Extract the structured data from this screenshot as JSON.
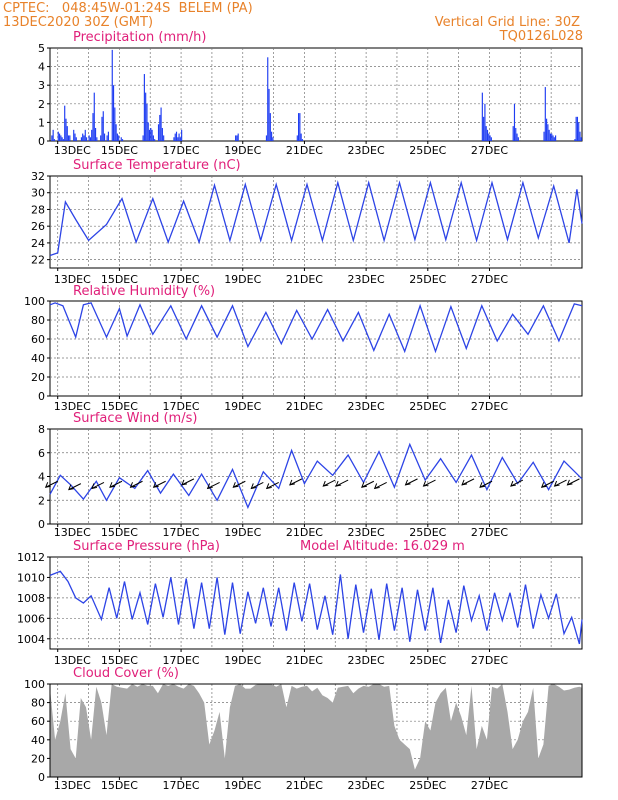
{
  "header": {
    "line1": "CPTEC:   048:45W-01:24S  BELEM (PA)",
    "line2": "13DEC2020 30Z (GMT)",
    "grid_note": "Vertical Grid Line: 30Z",
    "code": "TQ0126L028",
    "model_altitude": "Model Altitude: 16.029 m"
  },
  "colors": {
    "header": "#e8822a",
    "title": "#e0207a",
    "line": "#2d44e6",
    "bar": "#1f3df2",
    "cloud": "#a8a8a8",
    "arrow": "#000000"
  },
  "chart_data": [
    {
      "id": "precip",
      "type": "bar",
      "title": "Precipitation (mm/h)",
      "xlabel_ticks": [
        "13DEC",
        "15DEC",
        "17DEC",
        "19DEC",
        "21DEC",
        "23DEC",
        "25DEC",
        "27DEC"
      ],
      "ylim": [
        0,
        5
      ],
      "yticks": [
        0,
        1,
        2,
        3,
        4,
        5
      ],
      "grid": true,
      "x_hours": [
        1,
        2,
        3,
        6,
        7,
        8,
        9,
        10,
        11,
        12,
        13,
        14,
        15,
        18,
        19,
        20,
        24,
        25,
        26,
        27,
        28,
        30,
        31,
        32,
        33,
        34,
        35,
        36,
        39,
        40,
        41,
        42,
        44,
        45,
        48,
        49,
        50,
        51,
        52,
        53,
        55,
        56,
        72,
        73,
        74,
        75,
        76,
        77,
        78,
        79,
        80,
        81,
        84,
        85,
        86,
        87,
        88,
        96,
        97,
        98,
        99,
        100,
        101,
        102,
        144,
        145,
        146,
        168,
        169,
        170,
        171,
        172,
        173,
        192,
        193,
        194,
        195,
        196,
        336,
        337,
        338,
        339,
        340,
        341,
        342,
        343,
        360,
        361,
        362,
        363,
        364,
        384,
        385,
        386,
        387,
        388,
        389,
        390,
        391,
        392,
        393,
        408,
        409,
        410,
        411,
        412,
        413
      ],
      "values": [
        0.3,
        0.6,
        0.1,
        0.5,
        0.4,
        0.3,
        0.2,
        0.1,
        1.9,
        1.2,
        0.8,
        0.3,
        0.3,
        0.6,
        0.4,
        0.2,
        0.2,
        0.4,
        0.3,
        0.6,
        0.2,
        0.3,
        0.2,
        0.6,
        1.5,
        2.6,
        0.7,
        0.2,
        0.3,
        1.3,
        1.6,
        0.4,
        0.3,
        0.5,
        4.9,
        3.0,
        1.8,
        0.9,
        0.4,
        0.3,
        0.2,
        0.1,
        0.3,
        3.6,
        2.6,
        2.0,
        1.0,
        0.6,
        0.7,
        0.6,
        0.3,
        0.1,
        0.9,
        1.4,
        1.8,
        0.7,
        0.3,
        0.2,
        0.4,
        0.5,
        0.2,
        0.4,
        0.2,
        0.6,
        0.3,
        0.3,
        0.4,
        0.3,
        4.5,
        2.8,
        1.5,
        0.5,
        0.2,
        0.3,
        1.5,
        1.5,
        0.4,
        0.1,
        2.6,
        1.3,
        2.0,
        0.8,
        0.6,
        0.4,
        0.3,
        0.2,
        0.8,
        2.0,
        0.7,
        0.4,
        0.2,
        0.5,
        2.9,
        1.2,
        0.9,
        0.6,
        0.4,
        0.4,
        0.3,
        0.2,
        0.3,
        0.1,
        1.3,
        1.3,
        1.0,
        0.5,
        0.2
      ]
    },
    {
      "id": "temp",
      "type": "line",
      "title": "Surface Temperature (nC)",
      "xlabel_ticks": [
        "13DEC",
        "15DEC",
        "17DEC",
        "19DEC",
        "21DEC",
        "23DEC",
        "25DEC",
        "27DEC"
      ],
      "ylim": [
        21,
        32
      ],
      "yticks": [
        22,
        24,
        26,
        28,
        30,
        32
      ],
      "grid": true,
      "x_hours": [
        0,
        6,
        12,
        20,
        30,
        44,
        56,
        67,
        80,
        92,
        104,
        116,
        128,
        140,
        152,
        164,
        176,
        188,
        200,
        212,
        224,
        236,
        248,
        260,
        272,
        284,
        296,
        308,
        320,
        332,
        344,
        356,
        368,
        380,
        392,
        404,
        410,
        414
      ],
      "values": [
        22.5,
        22.8,
        28.9,
        26.8,
        24.3,
        26.2,
        29.3,
        24.1,
        29.3,
        24.1,
        29.0,
        24.1,
        30.9,
        24.3,
        31.0,
        24.3,
        31.0,
        24.3,
        31.0,
        24.3,
        31.2,
        24.3,
        31.2,
        24.3,
        31.2,
        24.4,
        31.2,
        24.4,
        31.2,
        24.3,
        31.2,
        24.4,
        31.2,
        24.6,
        30.8,
        24.0,
        30.4,
        26.3
      ]
    },
    {
      "id": "rh",
      "type": "line",
      "title": "Relative Humidity (%)",
      "xlabel_ticks": [
        "13DEC",
        "15DEC",
        "17DEC",
        "19DEC",
        "21DEC",
        "23DEC",
        "25DEC",
        "27DEC"
      ],
      "ylim": [
        0,
        100
      ],
      "yticks": [
        0,
        20,
        40,
        60,
        80,
        100
      ],
      "grid": true,
      "x_hours": [
        0,
        4,
        10,
        20,
        26,
        32,
        44,
        54,
        60,
        70,
        80,
        94,
        106,
        118,
        130,
        142,
        154,
        168,
        180,
        192,
        204,
        216,
        228,
        240,
        252,
        264,
        276,
        288,
        300,
        312,
        324,
        336,
        348,
        360,
        372,
        384,
        396,
        408,
        414
      ],
      "values": [
        96,
        98,
        95,
        62,
        96,
        98,
        62,
        92,
        63,
        96,
        65,
        95,
        60,
        95,
        62,
        95,
        52,
        88,
        55,
        90,
        60,
        91,
        58,
        88,
        48,
        86,
        47,
        95,
        47,
        94,
        50,
        95,
        58,
        86,
        65,
        95,
        58,
        97,
        95
      ]
    },
    {
      "id": "wind",
      "type": "line",
      "title": "Surface Wind (m/s)",
      "xlabel_ticks": [
        "13DEC",
        "15DEC",
        "17DEC",
        "19DEC",
        "21DEC",
        "23DEC",
        "25DEC",
        "27DEC"
      ],
      "ylim": [
        0,
        8
      ],
      "yticks": [
        0,
        2,
        4,
        6,
        8
      ],
      "grid": true,
      "x_hours": [
        0,
        8,
        16,
        26,
        36,
        44,
        54,
        66,
        76,
        86,
        96,
        108,
        118,
        130,
        142,
        154,
        166,
        178,
        188,
        198,
        208,
        220,
        232,
        244,
        256,
        268,
        280,
        292,
        304,
        316,
        328,
        340,
        352,
        364,
        376,
        388,
        400,
        414
      ],
      "values": [
        2.5,
        4.1,
        3.3,
        2.1,
        3.6,
        2.0,
        3.9,
        3.0,
        4.5,
        2.6,
        4.2,
        2.4,
        4.2,
        2.0,
        4.6,
        1.4,
        4.4,
        3.0,
        6.2,
        3.4,
        5.3,
        4.1,
        5.8,
        3.5,
        6.1,
        3.1,
        6.7,
        3.7,
        5.5,
        3.5,
        5.8,
        2.9,
        5.6,
        3.4,
        5.2,
        2.9,
        5.3,
        3.8
      ],
      "arrows_x_hours": [
        6,
        24,
        42,
        56,
        72,
        90,
        112,
        132,
        152,
        166,
        178,
        196,
        222,
        232,
        252,
        262,
        286,
        300,
        330,
        344,
        368,
        392,
        402,
        412
      ],
      "arrows_y": [
        3.6,
        3.4,
        3.5,
        3.6,
        3.6,
        3.6,
        3.8,
        3.5,
        3.6,
        3.5,
        3.5,
        3.8,
        3.7,
        3.7,
        3.6,
        3.5,
        3.8,
        3.7,
        3.8,
        3.6,
        3.7,
        3.6,
        3.7,
        3.8
      ]
    },
    {
      "id": "pres",
      "type": "line",
      "title": "Surface Pressure (hPa)",
      "xlabel_ticks": [
        "13DEC",
        "15DEC",
        "17DEC",
        "19DEC",
        "21DEC",
        "23DEC",
        "25DEC",
        "27DEC"
      ],
      "ylim": [
        1003,
        1012
      ],
      "yticks": [
        1004,
        1006,
        1008,
        1010,
        1012
      ],
      "grid": true,
      "x_hours": [
        0,
        8,
        14,
        20,
        26,
        32,
        40,
        46,
        52,
        58,
        64,
        70,
        76,
        82,
        88,
        94,
        100,
        106,
        112,
        118,
        124,
        130,
        136,
        142,
        148,
        154,
        160,
        166,
        172,
        178,
        184,
        190,
        196,
        202,
        208,
        214,
        220,
        226,
        232,
        238,
        244,
        250,
        256,
        262,
        268,
        274,
        280,
        286,
        292,
        298,
        304,
        310,
        316,
        322,
        328,
        334,
        340,
        346,
        352,
        358,
        364,
        370,
        376,
        382,
        388,
        394,
        400,
        406,
        412,
        414
      ],
      "values": [
        1010.2,
        1010.6,
        1009.6,
        1008.0,
        1007.5,
        1008.2,
        1005.9,
        1009.0,
        1006.0,
        1009.6,
        1005.9,
        1008.5,
        1005.4,
        1009.4,
        1006.1,
        1010.0,
        1005.4,
        1009.9,
        1005.0,
        1009.5,
        1005.0,
        1010.0,
        1004.4,
        1009.5,
        1004.5,
        1008.6,
        1005.5,
        1009.0,
        1005.2,
        1009.0,
        1004.8,
        1009.5,
        1005.7,
        1009.4,
        1004.9,
        1008.2,
        1004.4,
        1010.3,
        1004.0,
        1009.3,
        1004.6,
        1008.9,
        1003.9,
        1009.4,
        1004.8,
        1009.0,
        1003.7,
        1008.8,
        1004.8,
        1009.0,
        1003.6,
        1007.8,
        1004.6,
        1009.2,
        1005.8,
        1008.2,
        1004.8,
        1008.5,
        1005.8,
        1008.5,
        1005.1,
        1009.3,
        1005.0,
        1008.3,
        1006.0,
        1008.4,
        1004.5,
        1006.1,
        1003.5,
        1005.9
      ]
    },
    {
      "id": "cloud",
      "type": "area",
      "title": "Cloud Cover (%)",
      "xlabel_ticks": [
        "13DEC",
        "15DEC",
        "17DEC",
        "19DEC",
        "21DEC",
        "23DEC",
        "25DEC",
        "27DEC"
      ],
      "ylim": [
        0,
        100
      ],
      "yticks": [
        0,
        20,
        40,
        60,
        80,
        100
      ],
      "grid": true,
      "x_hours": [
        0,
        4,
        8,
        12,
        16,
        20,
        24,
        28,
        32,
        36,
        40,
        44,
        48,
        52,
        56,
        60,
        64,
        68,
        72,
        76,
        80,
        84,
        88,
        92,
        96,
        100,
        104,
        108,
        112,
        116,
        120,
        124,
        128,
        132,
        136,
        140,
        144,
        148,
        152,
        156,
        160,
        164,
        168,
        172,
        176,
        180,
        184,
        188,
        192,
        196,
        200,
        204,
        208,
        212,
        216,
        220,
        224,
        228,
        232,
        236,
        240,
        244,
        248,
        252,
        256,
        260,
        264,
        268,
        272,
        276,
        280,
        284,
        288,
        292,
        296,
        300,
        304,
        308,
        312,
        316,
        320,
        324,
        328,
        332,
        336,
        340,
        344,
        348,
        352,
        356,
        360,
        364,
        368,
        372,
        376,
        380,
        384,
        388,
        392,
        396,
        400,
        404,
        408,
        412,
        414
      ],
      "values": [
        95,
        40,
        60,
        90,
        30,
        20,
        85,
        75,
        40,
        97,
        80,
        45,
        100,
        97,
        96,
        95,
        100,
        97,
        100,
        98,
        98,
        90,
        100,
        98,
        100,
        97,
        95,
        100,
        98,
        90,
        80,
        35,
        50,
        70,
        20,
        75,
        98,
        100,
        95,
        95,
        99,
        100,
        100,
        100,
        97,
        100,
        75,
        98,
        95,
        97,
        98,
        92,
        96,
        88,
        85,
        80,
        96,
        97,
        98,
        90,
        95,
        98,
        97,
        100,
        100,
        97,
        98,
        55,
        40,
        35,
        30,
        8,
        20,
        60,
        50,
        80,
        90,
        96,
        60,
        80,
        65,
        45,
        98,
        30,
        55,
        40,
        97,
        95,
        100,
        70,
        30,
        40,
        60,
        70,
        96,
        20,
        35,
        98,
        100,
        97,
        93,
        94,
        96,
        97,
        96
      ]
    }
  ]
}
